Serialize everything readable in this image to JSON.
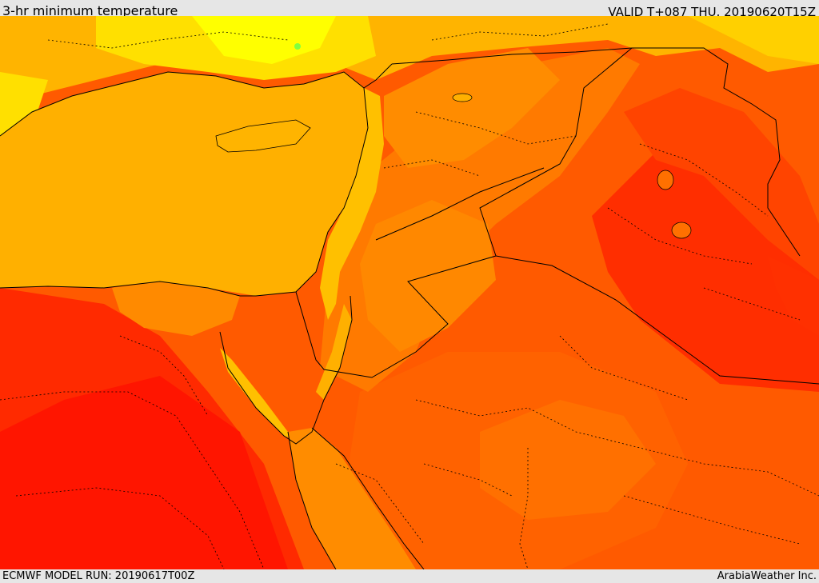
{
  "header": {
    "title": "3-hr minimum temperature",
    "valid": "VALID T+087 THU. 20190620T15Z"
  },
  "footer": {
    "model_run": "ECMWF MODEL RUN: 20190617T00Z",
    "credit": "ArabiaWeather Inc."
  },
  "colors": {
    "sea_mediterranean": "#ffb000",
    "sea_red_sea": "#ff8c00",
    "band_yellow": "#ffff00",
    "band_light_orange": "#ffc800",
    "band_orange": "#ff9900",
    "band_dark_orange": "#ff6a00",
    "band_red_orange": "#ff4000",
    "band_red": "#ff2000",
    "green_spot": "#80ff40",
    "border_line": "#000000"
  }
}
